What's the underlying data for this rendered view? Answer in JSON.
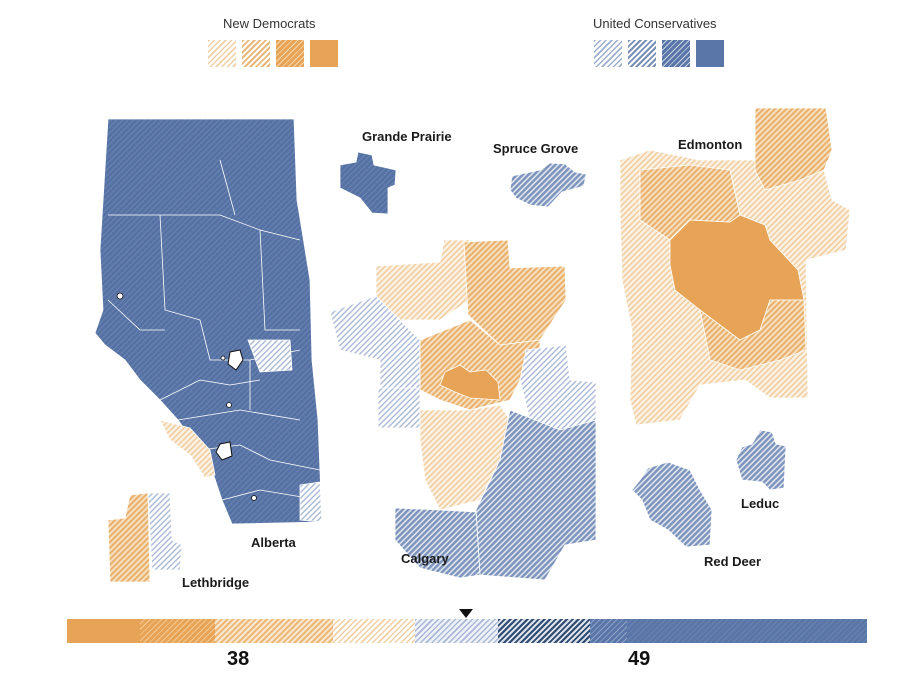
{
  "legend": {
    "ndp_title": "New Democrats",
    "ucp_title": "United Conservatives"
  },
  "colors": {
    "ndp_solid": "#e8a456",
    "ucp_solid": "#5a76a8",
    "ndp_light": "#f0cfa4",
    "ucp_light": "#b9c5da"
  },
  "labels": {
    "alberta": "Alberta",
    "lethbridge": "Lethbridge",
    "grande_prairie": "Grande Prairie",
    "spruce_grove": "Spruce Grove",
    "calgary": "Calgary",
    "edmonton": "Edmonton",
    "leduc": "Leduc",
    "red_deer": "Red Deer"
  },
  "seat_bar": {
    "ndp_seats": "38",
    "ucp_seats": "49",
    "total_seats": 87
  }
}
